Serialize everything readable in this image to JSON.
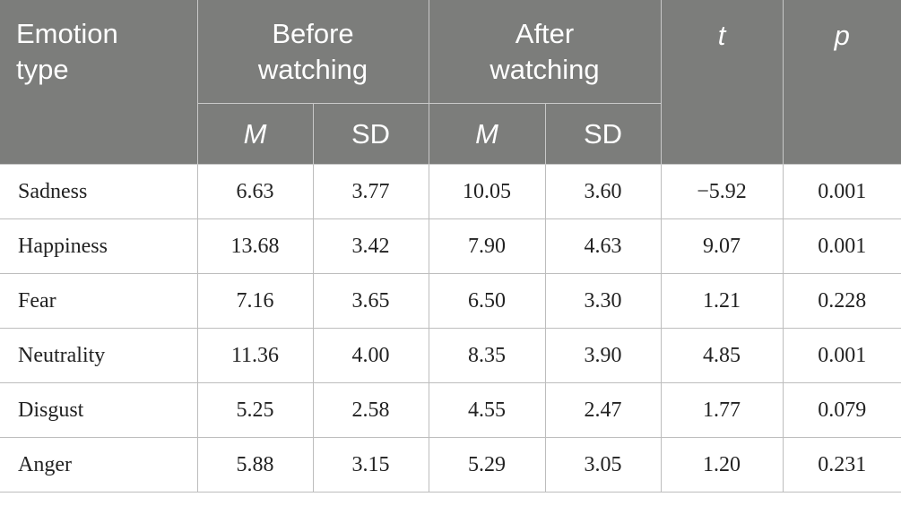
{
  "header": {
    "emotion_type": "Emotion type",
    "before": "Before watching",
    "after": "After watching",
    "t": "t",
    "p": "p",
    "m": "M",
    "sd": "SD"
  },
  "rows": [
    {
      "emotion": "Sadness",
      "before_m": "6.63",
      "before_sd": "3.77",
      "after_m": "10.05",
      "after_sd": "3.60",
      "t": "−5.92",
      "p": "0.001"
    },
    {
      "emotion": "Happiness",
      "before_m": "13.68",
      "before_sd": "3.42",
      "after_m": "7.90",
      "after_sd": "4.63",
      "t": "9.07",
      "p": "0.001"
    },
    {
      "emotion": "Fear",
      "before_m": "7.16",
      "before_sd": "3.65",
      "after_m": "6.50",
      "after_sd": "3.30",
      "t": "1.21",
      "p": "0.228"
    },
    {
      "emotion": "Neutrality",
      "before_m": "11.36",
      "before_sd": "4.00",
      "after_m": "8.35",
      "after_sd": "3.90",
      "t": "4.85",
      "p": "0.001"
    },
    {
      "emotion": "Disgust",
      "before_m": "5.25",
      "before_sd": "2.58",
      "after_m": "4.55",
      "after_sd": "2.47",
      "t": "1.77",
      "p": "0.079"
    },
    {
      "emotion": "Anger",
      "before_m": "5.88",
      "before_sd": "3.15",
      "after_m": "5.29",
      "after_sd": "3.05",
      "t": "1.20",
      "p": "0.231"
    }
  ]
}
